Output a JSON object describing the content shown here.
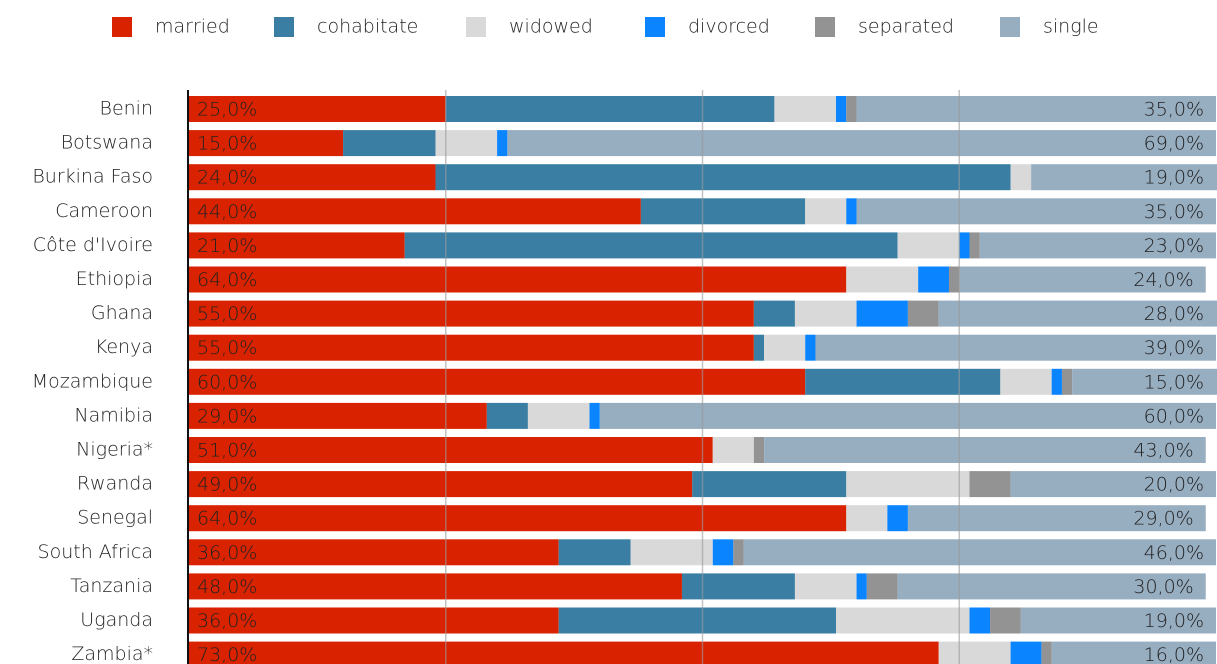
{
  "chart_data": {
    "type": "stacked-bar-horizontal",
    "categories": [
      "Benin",
      "Botswana",
      "Burkina Faso",
      "Cameroon",
      "Côte d'Ivoire",
      "Ethiopia",
      "Ghana",
      "Kenya",
      "Mozambique",
      "Namibia",
      "Nigeria*",
      "Rwanda",
      "Senegal",
      "South Africa",
      "Tanzania",
      "Uganda",
      "Zambia*"
    ],
    "series": [
      {
        "name": "married",
        "color": "#d92300",
        "values": [
          25,
          15,
          24,
          44,
          21,
          64,
          55,
          55,
          60,
          29,
          51,
          49,
          64,
          36,
          48,
          36,
          73
        ],
        "value_labels": [
          "25,0%",
          "15,0%",
          "24,0%",
          "44,0%",
          "21,0%",
          "64,0%",
          "55,0%",
          "55,0%",
          "60,0%",
          "29,0%",
          "51,0%",
          "49,0%",
          "64,0%",
          "36,0%",
          "48,0%",
          "36,0%",
          "73,0%"
        ]
      },
      {
        "name": "cohabitate",
        "color": "#3a7fa3",
        "values": [
          32,
          9,
          56,
          16,
          48,
          0,
          4,
          1,
          19,
          4,
          0,
          15,
          0,
          7,
          11,
          27,
          0
        ]
      },
      {
        "name": "widowed",
        "color": "#d9d9d9",
        "values": [
          6,
          6,
          2,
          4,
          6,
          7,
          6,
          4,
          5,
          6,
          4,
          12,
          4,
          8,
          6,
          13,
          7
        ]
      },
      {
        "name": "divorced",
        "color": "#0a85ff",
        "values": [
          1,
          1,
          0,
          1,
          1,
          3,
          5,
          1,
          1,
          1,
          0,
          0,
          2,
          2,
          1,
          2,
          3
        ]
      },
      {
        "name": "separated",
        "color": "#939393",
        "values": [
          1,
          0,
          0,
          0,
          1,
          1,
          3,
          0,
          1,
          0,
          1,
          4,
          0,
          1,
          3,
          3,
          1
        ]
      },
      {
        "name": "single",
        "color": "#97adc0",
        "values": [
          35,
          69,
          19,
          35,
          23,
          24,
          28,
          39,
          15,
          60,
          43,
          20,
          29,
          46,
          30,
          19,
          16
        ],
        "value_labels": [
          "35,0%",
          "69,0%",
          "19,0%",
          "35,0%",
          "23,0%",
          "24,0%",
          "28,0%",
          "39,0%",
          "15,0%",
          "60,0%",
          "43,0%",
          "20,0%",
          "29,0%",
          "46,0%",
          "30,0%",
          "19,0%",
          "16,0%"
        ]
      }
    ],
    "xlim": [
      0,
      100
    ],
    "xticks": [
      25,
      50,
      75
    ],
    "grid": true,
    "legend": "top"
  }
}
